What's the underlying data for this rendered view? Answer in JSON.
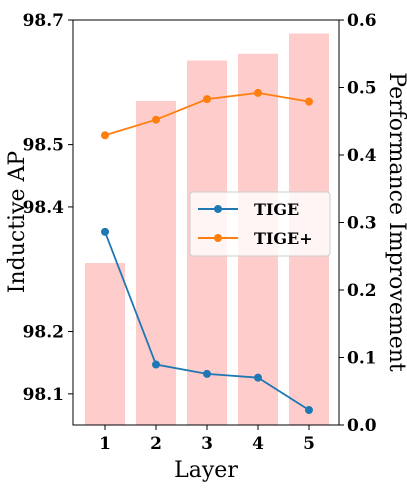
{
  "chart_data": {
    "type": "bar+line",
    "x": [
      1,
      2,
      3,
      4,
      5
    ],
    "xlabel": "Layer",
    "ylabel_left": "Inductive AP",
    "ylabel_right": "Performance Improvement",
    "ylim_left": [
      98.05,
      98.7
    ],
    "ylim_right": [
      0.0,
      0.6
    ],
    "yticks_left": [
      "98.1",
      "98.2",
      "98.4",
      "98.5",
      "98.7"
    ],
    "ytick_values_left": [
      98.1,
      98.2,
      98.4,
      98.5,
      98.7
    ],
    "yticks_right": [
      "0.0",
      "0.1",
      "0.2",
      "0.3",
      "0.4",
      "0.5",
      "0.6"
    ],
    "bars": {
      "axis": "right",
      "values": [
        0.24,
        0.48,
        0.54,
        0.55,
        0.58
      ],
      "color": "#ffcccc"
    },
    "series": [
      {
        "name": "TIGE",
        "axis": "left",
        "color": "#1f77b4",
        "values": [
          98.36,
          98.147,
          98.132,
          98.126,
          98.074
        ]
      },
      {
        "name": "TIGE+",
        "axis": "left",
        "color": "#ff7f0e",
        "values": [
          98.515,
          98.54,
          98.573,
          98.583,
          98.569
        ]
      }
    ],
    "legend_position": "center-right",
    "grid": false
  }
}
